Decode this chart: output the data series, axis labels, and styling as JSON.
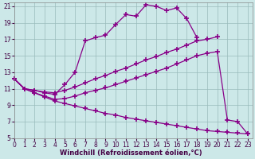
{
  "xlabel": "Windchill (Refroidissement éolien,°C)",
  "background_color": "#cce8e8",
  "line_color": "#880088",
  "grid_color": "#99bbbb",
  "xlim": [
    -0.5,
    23.5
  ],
  "ylim": [
    5,
    21.5
  ],
  "xticks": [
    0,
    1,
    2,
    3,
    4,
    5,
    6,
    7,
    8,
    9,
    10,
    11,
    12,
    13,
    14,
    15,
    16,
    17,
    18,
    19,
    20,
    21,
    22,
    23
  ],
  "yticks": [
    5,
    7,
    9,
    11,
    13,
    15,
    17,
    19,
    21
  ],
  "series": [
    {
      "x": [
        0,
        1,
        2,
        3,
        4,
        5,
        6,
        7,
        8,
        9,
        10,
        11,
        12,
        13,
        14,
        15,
        16,
        17,
        18
      ],
      "y": [
        12.2,
        11.0,
        10.8,
        10.5,
        10.3,
        11.5,
        13.0,
        16.8,
        17.2,
        17.5,
        18.8,
        20.0,
        19.8,
        21.2,
        21.0,
        20.5,
        20.8,
        19.5,
        17.2
      ]
    },
    {
      "x": [
        0,
        1,
        2,
        3,
        4,
        5,
        6,
        7,
        8,
        9,
        10,
        11,
        12,
        13,
        14,
        15,
        16,
        17,
        18,
        19,
        20
      ],
      "y": [
        12.2,
        11.0,
        10.8,
        10.6,
        10.5,
        10.8,
        11.2,
        11.7,
        12.2,
        12.6,
        13.1,
        13.5,
        14.0,
        14.5,
        14.9,
        15.4,
        15.8,
        16.3,
        16.8,
        17.0,
        17.3
      ]
    },
    {
      "x": [
        0,
        1,
        2,
        3,
        4,
        5,
        6,
        7,
        8,
        9,
        10,
        11,
        12,
        13,
        14,
        15,
        16,
        17,
        18,
        19,
        20,
        21,
        22,
        23
      ],
      "y": [
        12.2,
        11.0,
        10.5,
        10.1,
        9.7,
        9.8,
        10.1,
        10.5,
        10.8,
        11.1,
        11.5,
        11.9,
        12.3,
        12.7,
        13.1,
        13.5,
        14.0,
        14.5,
        15.0,
        15.3,
        15.5,
        7.2,
        7.0,
        5.5
      ]
    },
    {
      "x": [
        0,
        1,
        2,
        3,
        4,
        5,
        6,
        7,
        8,
        9,
        10,
        11,
        12,
        13,
        14,
        15,
        16,
        17,
        18,
        19,
        20,
        21,
        22,
        23
      ],
      "y": [
        12.2,
        11.0,
        10.5,
        10.0,
        9.5,
        9.2,
        8.9,
        8.6,
        8.3,
        8.0,
        7.8,
        7.5,
        7.3,
        7.1,
        6.9,
        6.7,
        6.5,
        6.3,
        6.1,
        5.9,
        5.8,
        5.7,
        5.6,
        5.5
      ]
    }
  ],
  "marker": "+",
  "markersize": 4,
  "markeredgewidth": 1.2,
  "linewidth": 0.9,
  "tick_fontsize": 5.5,
  "label_fontsize": 6.0
}
